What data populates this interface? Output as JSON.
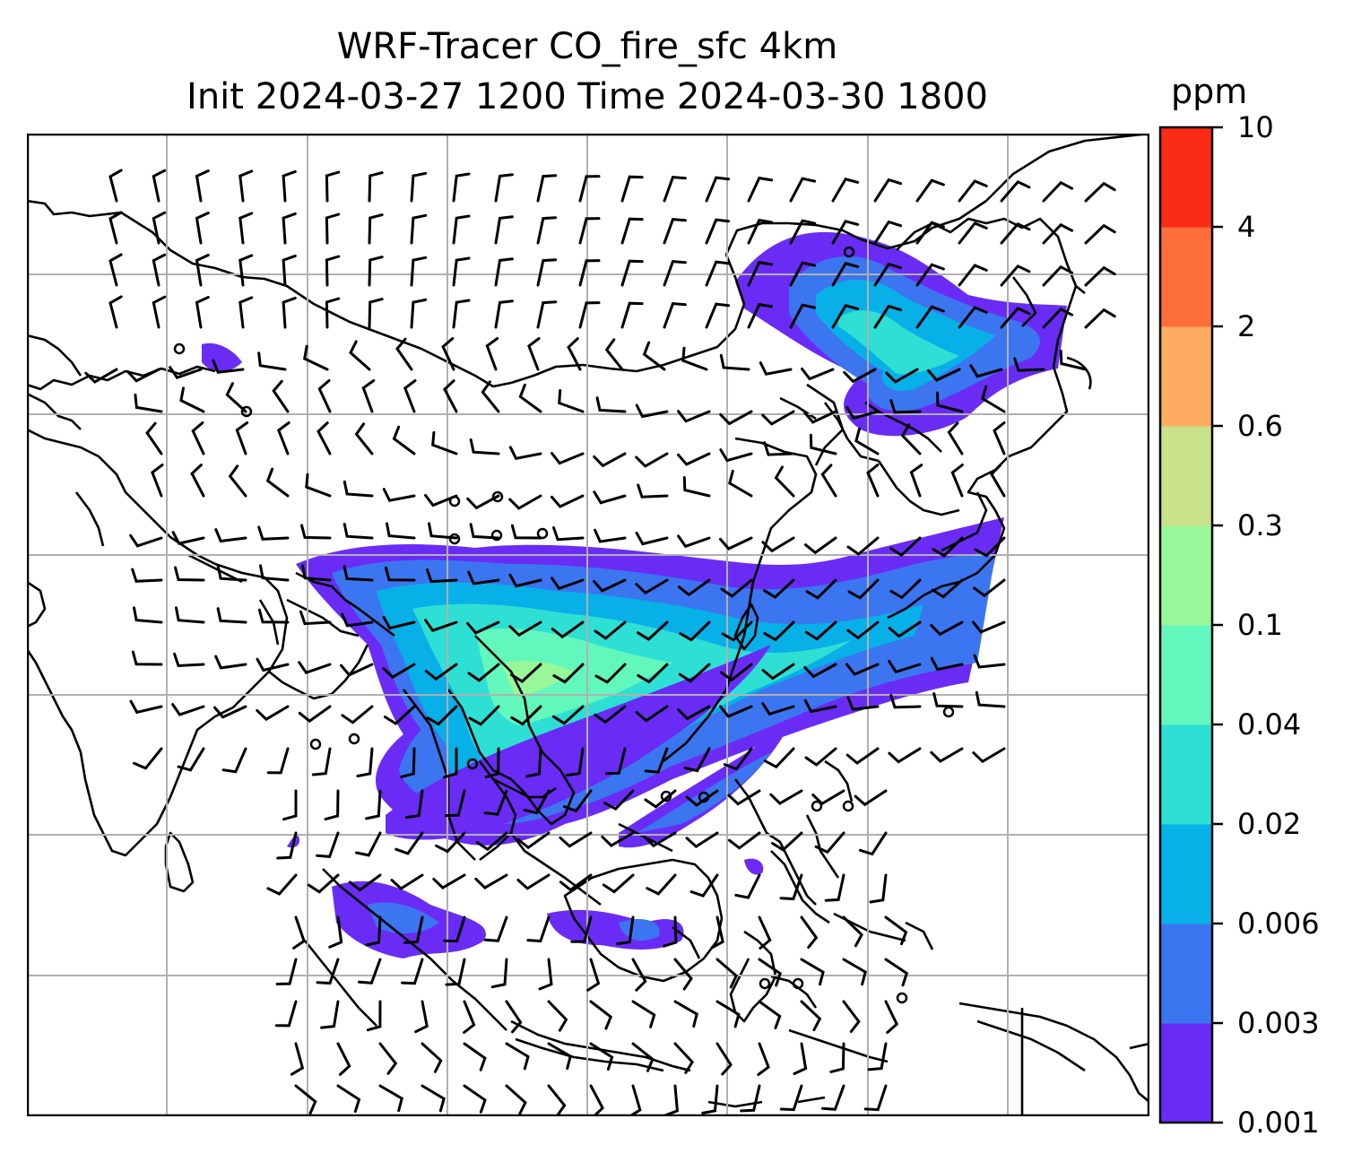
{
  "title": {
    "line1": "WRF-Tracer CO_fire_sfc 4km",
    "line2": "Init 2024-03-27 1200 Time 2024-03-30 1800"
  },
  "colorbar": {
    "unit": "ppm",
    "levels": [
      "0.001",
      "0.003",
      "0.006",
      "0.02",
      "0.04",
      "0.1",
      "0.3",
      "0.6",
      "2",
      "4",
      "10"
    ],
    "colors": [
      "#6a2cf5",
      "#3b76f0",
      "#08b0e8",
      "#2edfd4",
      "#62f7bd",
      "#98f799",
      "#c9e18a",
      "#feac61",
      "#fe6e3b",
      "#fb2b16"
    ]
  },
  "map": {
    "land_outline_color": "#000000",
    "gridline_color": "#b0b0b0"
  }
}
